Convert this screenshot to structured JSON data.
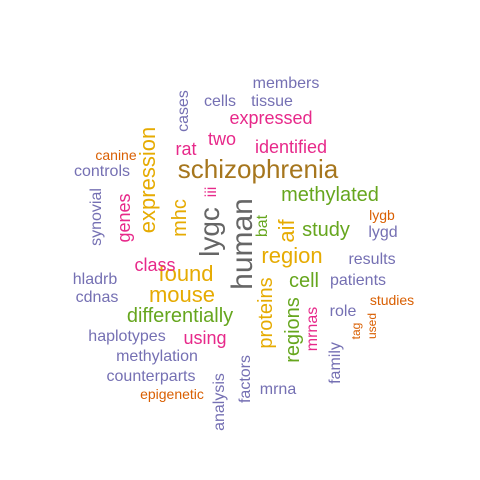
{
  "word_cloud": {
    "colors": {
      "purple": "#7570b3",
      "magenta": "#e7298a",
      "gold": "#e6ab02",
      "brown": "#a6761d",
      "green": "#66a61e",
      "orange": "#d95f02",
      "dark": "#666666"
    },
    "words": [
      {
        "text": "schizophrenia"
      },
      {
        "text": "human"
      },
      {
        "text": "lygc"
      },
      {
        "text": "expression"
      },
      {
        "text": "found"
      },
      {
        "text": "mouse"
      },
      {
        "text": "methylated"
      },
      {
        "text": "region"
      },
      {
        "text": "aif"
      },
      {
        "text": "proteins"
      },
      {
        "text": "regions"
      },
      {
        "text": "cell"
      },
      {
        "text": "study"
      },
      {
        "text": "differentially"
      },
      {
        "text": "mhc"
      },
      {
        "text": "expressed"
      },
      {
        "text": "identified"
      },
      {
        "text": "genes"
      },
      {
        "text": "class"
      },
      {
        "text": "using"
      },
      {
        "text": "two"
      },
      {
        "text": "rat"
      },
      {
        "text": "bat"
      },
      {
        "text": "mrnas"
      },
      {
        "text": "iii"
      },
      {
        "text": "members"
      },
      {
        "text": "cells"
      },
      {
        "text": "tissue"
      },
      {
        "text": "cases"
      },
      {
        "text": "canine"
      },
      {
        "text": "controls"
      },
      {
        "text": "synovial"
      },
      {
        "text": "lygb"
      },
      {
        "text": "lygd"
      },
      {
        "text": "results"
      },
      {
        "text": "patients"
      },
      {
        "text": "hladrb"
      },
      {
        "text": "cdnas"
      },
      {
        "text": "studies"
      },
      {
        "text": "role"
      },
      {
        "text": "tag"
      },
      {
        "text": "used"
      },
      {
        "text": "haplotypes"
      },
      {
        "text": "methylation"
      },
      {
        "text": "counterparts"
      },
      {
        "text": "epigenetic"
      },
      {
        "text": "analysis"
      },
      {
        "text": "factors"
      },
      {
        "text": "mrna"
      },
      {
        "text": "family"
      }
    ]
  }
}
